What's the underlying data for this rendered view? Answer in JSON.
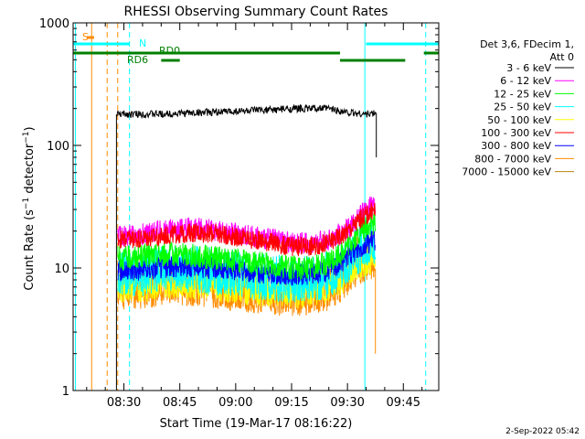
{
  "chart_data": {
    "type": "line",
    "title": "RHESSI Observing Summary Count Rates",
    "xlabel": "Start Time (19-Mar-17 08:16:22)",
    "ylabel": "Count Rate (s⁻¹ detector⁻¹)",
    "ylabel_parts": {
      "main": "Count Rate (s",
      "exp1": "−1",
      "mid": " detector",
      "exp2": "−1",
      "end": ")"
    },
    "footer_date": "2-Sep-2022 05:42",
    "x_range": [
      "08:16:22",
      "09:54:30"
    ],
    "y_scale": "log",
    "ylim": [
      1,
      1000
    ],
    "x_ticks": [
      "08:30",
      "08:45",
      "09:00",
      "09:15",
      "09:30",
      "09:45"
    ],
    "y_ticks": [
      "1",
      "10",
      "100",
      "1000"
    ],
    "legend_header": [
      "Det 3,6, FDecim 1,",
      "Att 0"
    ],
    "legend_position": "right",
    "series": [
      {
        "name": "3 - 6 keV",
        "color": "#000000",
        "x": [
          "08:28:00",
          "08:28:20",
          "08:30",
          "08:40",
          "08:50",
          "09:00",
          "09:10",
          "09:18",
          "09:25",
          "09:30",
          "09:35",
          "09:37:30",
          "09:37:45"
        ],
        "values": [
          180,
          180,
          180,
          180,
          185,
          190,
          195,
          200,
          200,
          185,
          180,
          182,
          80
        ]
      },
      {
        "name": "6 - 12 keV",
        "color": "#ff00ff",
        "x": [
          "08:28:20",
          "08:35",
          "08:40",
          "08:45",
          "08:50",
          "08:55",
          "09:00",
          "09:05",
          "09:10",
          "09:15",
          "09:20",
          "09:25",
          "09:28",
          "09:31",
          "09:34",
          "09:37:30"
        ],
        "values": [
          18,
          19,
          20,
          21,
          21,
          20,
          19,
          18,
          17,
          16,
          16,
          17,
          19,
          22,
          28,
          34
        ]
      },
      {
        "name": "12 - 25 keV",
        "color": "#00ff00",
        "x": [
          "08:28:20",
          "08:35",
          "08:40",
          "08:45",
          "08:50",
          "08:55",
          "09:00",
          "09:05",
          "09:10",
          "09:15",
          "09:20",
          "09:25",
          "09:28",
          "09:31",
          "09:34",
          "09:37:30"
        ],
        "values": [
          12,
          12.5,
          13,
          13,
          12.5,
          12,
          11.5,
          11,
          10.5,
          10,
          10.2,
          11,
          13,
          16,
          20,
          24
        ]
      },
      {
        "name": "25 - 50 keV",
        "color": "#00ffff",
        "x": [
          "08:28:20",
          "08:35",
          "08:40",
          "08:45",
          "08:50",
          "08:55",
          "09:00",
          "09:05",
          "09:10",
          "09:15",
          "09:20",
          "09:25",
          "09:28",
          "09:31",
          "09:34",
          "09:37:30"
        ],
        "values": [
          8,
          8,
          8.5,
          8.8,
          8.5,
          8.2,
          8,
          7.6,
          7.3,
          7.1,
          7.2,
          7.8,
          9,
          11,
          13,
          15
        ]
      },
      {
        "name": "50 - 100 keV",
        "color": "#ffff00",
        "x": [
          "08:28:20",
          "08:35",
          "08:40",
          "08:45",
          "08:50",
          "08:55",
          "09:00",
          "09:05",
          "09:10",
          "09:15",
          "09:20",
          "09:25",
          "09:28",
          "09:31",
          "09:34",
          "09:37:30"
        ],
        "values": [
          7,
          7,
          7.5,
          7.7,
          7.4,
          7.1,
          6.9,
          6.6,
          6.4,
          6.2,
          6.3,
          6.8,
          7.8,
          9.5,
          11,
          12.5
        ]
      },
      {
        "name": "100 - 300 keV",
        "color": "#ff0000",
        "x": [
          "08:28:20",
          "08:35",
          "08:40",
          "08:45",
          "08:50",
          "08:55",
          "09:00",
          "09:05",
          "09:10",
          "09:15",
          "09:20",
          "09:25",
          "09:28",
          "09:31",
          "09:34",
          "09:37:30"
        ],
        "values": [
          17,
          17.5,
          18,
          19,
          19.5,
          19,
          18,
          17,
          16,
          15,
          15,
          16,
          18,
          21,
          26,
          30
        ]
      },
      {
        "name": "300 - 800 keV",
        "color": "#0000ff",
        "x": [
          "08:28:20",
          "08:35",
          "08:40",
          "08:45",
          "08:50",
          "08:55",
          "09:00",
          "09:05",
          "09:10",
          "09:15",
          "09:20",
          "09:25",
          "09:28",
          "09:31",
          "09:34",
          "09:37:30"
        ],
        "values": [
          9.5,
          9.7,
          10,
          10.3,
          10.2,
          10,
          9.7,
          9.3,
          9,
          8.8,
          8.9,
          9.5,
          11,
          13,
          15,
          17
        ]
      },
      {
        "name": "800 - 7000 keV",
        "color": "#ff8c00",
        "x": [
          "08:28:20",
          "08:35",
          "08:40",
          "08:45",
          "08:50",
          "08:55",
          "09:00",
          "09:05",
          "09:10",
          "09:15",
          "09:20",
          "09:25",
          "09:28",
          "09:31",
          "09:34",
          "09:37:30"
        ],
        "values": [
          6,
          6.1,
          6.3,
          6.5,
          6.3,
          6.1,
          5.9,
          5.6,
          5.4,
          5.3,
          5.4,
          5.9,
          6.8,
          8.3,
          9.8,
          11
        ]
      },
      {
        "name": "7000 - 15000 keV",
        "color": "#b8860b",
        "x": [],
        "values": []
      }
    ],
    "annotations": {
      "S": {
        "label": "S",
        "color": "#ff8c00"
      },
      "N": {
        "label": "N",
        "color": "#00ffff"
      },
      "RD0": {
        "label": "RD0",
        "color": "#008000"
      },
      "RD6": {
        "label": "RD6",
        "color": "#008000"
      }
    },
    "bars": {
      "S": {
        "color": "#ff8c00",
        "spans": [
          [
            "08:20:00",
            "08:22:00"
          ]
        ]
      },
      "N": {
        "color": "#00ffff",
        "spans": [
          [
            "08:16:22",
            "08:31:30"
          ],
          [
            "09:35:00",
            "09:54:30"
          ]
        ]
      },
      "RD0": {
        "color": "#008000",
        "spans": [
          [
            "08:16:22",
            "09:28:00"
          ],
          [
            "09:50:30",
            "09:54:30"
          ]
        ]
      },
      "RD6": {
        "color": "#008000",
        "spans": [
          [
            "08:40:00",
            "08:45:00"
          ],
          [
            "09:28:00",
            "09:45:30"
          ]
        ]
      }
    },
    "vlines": [
      {
        "x": "08:17:00",
        "color": "#00ffff",
        "style": "solid"
      },
      {
        "x": "08:21:20",
        "color": "#ff8c00",
        "style": "solid"
      },
      {
        "x": "08:25:30",
        "color": "#ff8c00",
        "style": "dashed"
      },
      {
        "x": "08:28:20",
        "color": "#ff8c00",
        "style": "dashed"
      },
      {
        "x": "08:31:30",
        "color": "#00ffff",
        "style": "dashed"
      },
      {
        "x": "09:34:40",
        "color": "#00ffff",
        "style": "solid"
      },
      {
        "x": "09:51:00",
        "color": "#00ffff",
        "style": "dashed"
      }
    ]
  }
}
